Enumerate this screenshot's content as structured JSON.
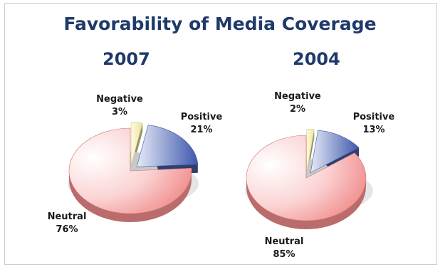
{
  "chart_title": "Favorability of Media Coverage",
  "chart_data": [
    {
      "type": "pie",
      "title": "2007",
      "categories": [
        "Negative",
        "Positive",
        "Neutral"
      ],
      "values": [
        3,
        21,
        76
      ],
      "value_labels": [
        "3%",
        "21%",
        "76%"
      ],
      "colors": [
        "#f7f2b0",
        "#4f68b8",
        "#ef8b8b"
      ],
      "exploded": [
        "Negative",
        "Positive"
      ]
    },
    {
      "type": "pie",
      "title": "2004",
      "categories": [
        "Negative",
        "Positive",
        "Neutral"
      ],
      "values": [
        2,
        13,
        85
      ],
      "value_labels": [
        "2%",
        "13%",
        "85%"
      ],
      "colors": [
        "#f7f2b0",
        "#4f68b8",
        "#ef8b8b"
      ],
      "exploded": [
        "Negative",
        "Positive"
      ]
    }
  ]
}
